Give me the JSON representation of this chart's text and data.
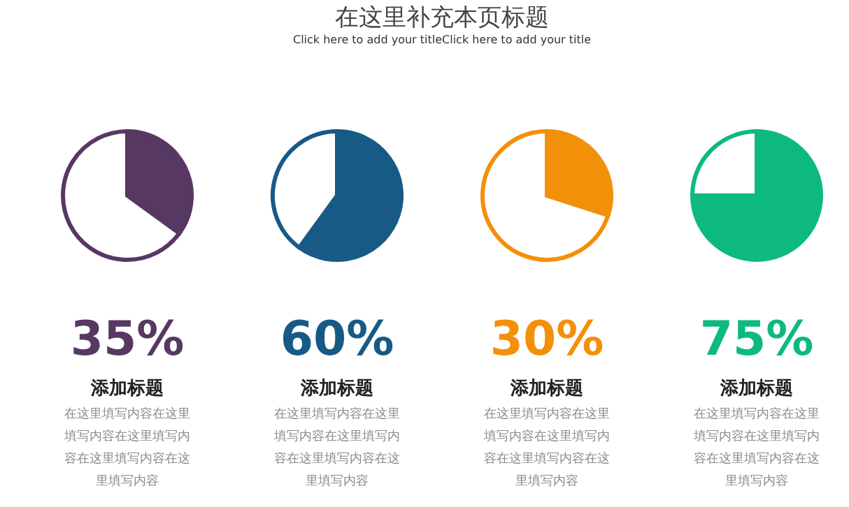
{
  "chart_data": [
    {
      "type": "pie",
      "title": "在这里补充本页标题",
      "subtitle": "Click here to add your titleClick here to add your title",
      "categories": [
        null,
        null
      ],
      "values": [
        35,
        65
      ],
      "colors": [
        "#573862",
        "#ffffff"
      ],
      "annotations": [
        "35%",
        "添加标题",
        "在这里填写内容在这里填写内容在这里填写内容在这里填写内容在这里填写内容"
      ]
    },
    {
      "type": "pie",
      "categories": [
        null,
        null
      ],
      "values": [
        60,
        40
      ],
      "colors": [
        "#175a86",
        "#ffffff"
      ],
      "annotations": [
        "60%",
        "添加标题",
        "在这里填写内容在这里填写内容在这里填写内容在这里填写内容在这里填写内容"
      ]
    },
    {
      "type": "pie",
      "categories": [
        null,
        null
      ],
      "values": [
        30,
        70
      ],
      "colors": [
        "#f39009",
        "#ffffff"
      ],
      "annotations": [
        "30%",
        "添加标题",
        "在这里填写内容在这里填写内容在这里填写内容在这里填写内容在这里填写内容"
      ]
    },
    {
      "type": "pie",
      "categories": [
        null,
        null
      ],
      "values": [
        75,
        25
      ],
      "colors": [
        "#0db97f",
        "#ffffff"
      ],
      "annotations": [
        "75%",
        "添加标题",
        "在这里填写内容在这里填写内容在这里填写内容在这里填写内容在这里填写内容"
      ]
    }
  ]
}
